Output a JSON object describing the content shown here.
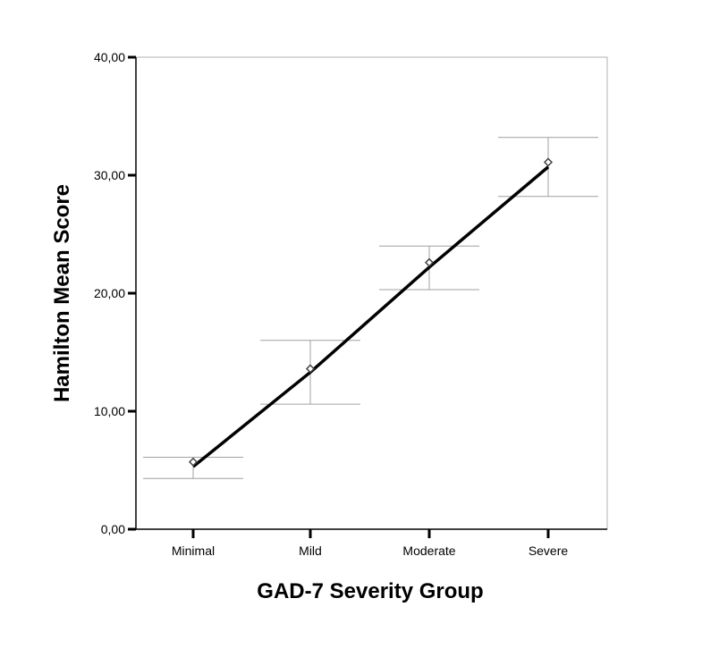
{
  "chart_data": {
    "type": "line",
    "title": "",
    "xlabel": "GAD-7 Severity Group",
    "ylabel": "Hamilton Mean Score",
    "categories": [
      "Minimal",
      "Mild",
      "Moderate",
      "Severe"
    ],
    "ylim": [
      0,
      40
    ],
    "yticks": [
      0,
      10,
      20,
      30,
      40
    ],
    "ytick_labels": [
      "0,00",
      "10,00",
      "20,00",
      "30,00",
      "40,00"
    ],
    "grid": false,
    "legend": "none",
    "series": [
      {
        "type": "points",
        "marker": "diamond",
        "values": [
          5.7,
          13.6,
          22.6,
          31.1
        ]
      },
      {
        "type": "line",
        "values": [
          5.3,
          13.3,
          22.2,
          30.7
        ]
      }
    ],
    "error_bars": [
      {
        "category": "Minimal",
        "low": 4.3,
        "high": 6.1
      },
      {
        "category": "Mild",
        "low": 10.6,
        "high": 16.0
      },
      {
        "category": "Moderate",
        "low": 20.3,
        "high": 24.0
      },
      {
        "category": "Severe",
        "low": 28.2,
        "high": 33.2
      }
    ],
    "colors": {
      "line": "#000000",
      "error_bar": "#a0a0a0",
      "frame": "#b0b0b0",
      "marker": "#444444"
    }
  }
}
